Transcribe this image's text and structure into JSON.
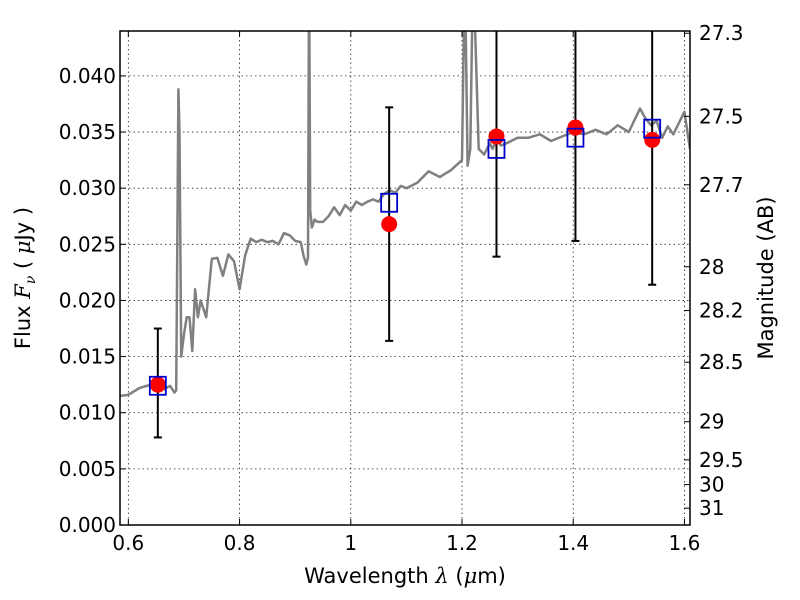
{
  "chart_data": {
    "type": "line",
    "xlabel_prefix": "Wavelength ",
    "xlabel_symbol": "λ",
    "xlabel_unit_open": " (",
    "xlabel_unit_mu": "μ",
    "xlabel_unit_close": "m)",
    "ylabel_prefix": "Flux ",
    "ylabel_symbol": "F",
    "ylabel_subscript": "ν",
    "ylabel_unit_open": " ( ",
    "ylabel_unit_mu": "μ",
    "ylabel_unit_close": "Jy )",
    "y2label": "Magnitude (AB)",
    "xlim": [
      0.585,
      1.61
    ],
    "ylim": [
      0.0,
      0.044
    ],
    "grid": true,
    "xticks": [
      0.6,
      0.8,
      1.0,
      1.2,
      1.4,
      1.6
    ],
    "xtick_labels": [
      "0.6",
      "0.8",
      "1",
      "1.2",
      "1.4",
      "1.6"
    ],
    "yticks": [
      0.0,
      0.005,
      0.01,
      0.015,
      0.02,
      0.025,
      0.03,
      0.035,
      0.04
    ],
    "ytick_labels": [
      "0.000",
      "0.005",
      "0.010",
      "0.015",
      "0.020",
      "0.025",
      "0.030",
      "0.035",
      "0.040"
    ],
    "y2ticks": [
      {
        "label": "27.3",
        "flux": 0.0438
      },
      {
        "label": "27.5",
        "flux": 0.0364
      },
      {
        "label": "27.7",
        "flux": 0.0303
      },
      {
        "label": "28",
        "flux": 0.023
      },
      {
        "label": "28.2",
        "flux": 0.0191
      },
      {
        "label": "28.5",
        "flux": 0.0145
      },
      {
        "label": "29",
        "flux": 0.0092
      },
      {
        "label": "29.5",
        "flux": 0.0058
      },
      {
        "label": "30",
        "flux": 0.0036
      },
      {
        "label": "31",
        "flux": 0.0015
      }
    ],
    "series": [
      {
        "kind": "template_spectrum",
        "color": "#808080",
        "x": [
          0.585,
          0.6,
          0.62,
          0.64,
          0.655,
          0.665,
          0.675,
          0.683,
          0.686,
          0.688,
          0.69,
          0.692,
          0.695,
          0.7,
          0.705,
          0.71,
          0.715,
          0.72,
          0.725,
          0.73,
          0.74,
          0.75,
          0.76,
          0.77,
          0.78,
          0.79,
          0.8,
          0.81,
          0.82,
          0.83,
          0.84,
          0.85,
          0.86,
          0.87,
          0.88,
          0.89,
          0.9,
          0.91,
          0.915,
          0.92,
          0.923,
          0.925,
          0.927,
          0.93,
          0.935,
          0.94,
          0.95,
          0.96,
          0.97,
          0.98,
          0.99,
          1.0,
          1.01,
          1.02,
          1.03,
          1.04,
          1.05,
          1.06,
          1.07,
          1.08,
          1.09,
          1.1,
          1.12,
          1.14,
          1.16,
          1.18,
          1.2,
          1.205,
          1.21,
          1.215,
          1.22,
          1.23,
          1.24,
          1.25,
          1.255,
          1.26,
          1.265,
          1.27,
          1.28,
          1.3,
          1.32,
          1.34,
          1.36,
          1.38,
          1.4,
          1.42,
          1.44,
          1.46,
          1.48,
          1.5,
          1.52,
          1.53,
          1.54,
          1.55,
          1.56,
          1.57,
          1.58,
          1.59,
          1.6,
          1.61
        ],
        "y": [
          0.0115,
          0.0116,
          0.0122,
          0.0125,
          0.0128,
          0.0121,
          0.0124,
          0.0118,
          0.012,
          0.025,
          0.0388,
          0.035,
          0.015,
          0.017,
          0.0185,
          0.0185,
          0.0155,
          0.021,
          0.0185,
          0.02,
          0.0185,
          0.0237,
          0.0238,
          0.0222,
          0.0241,
          0.0235,
          0.021,
          0.024,
          0.0255,
          0.0252,
          0.0254,
          0.0252,
          0.0253,
          0.025,
          0.026,
          0.0258,
          0.0253,
          0.0252,
          0.024,
          0.0232,
          0.0238,
          0.05,
          0.028,
          0.0265,
          0.0272,
          0.027,
          0.027,
          0.0275,
          0.0283,
          0.0276,
          0.0285,
          0.028,
          0.0288,
          0.0285,
          0.0288,
          0.029,
          0.0288,
          0.0295,
          0.0298,
          0.0296,
          0.0302,
          0.03,
          0.0305,
          0.0315,
          0.031,
          0.0316,
          0.0325,
          0.05,
          0.032,
          0.0335,
          0.05,
          0.0335,
          0.033,
          0.034,
          0.0335,
          0.0341,
          0.0342,
          0.0338,
          0.034,
          0.0345,
          0.0345,
          0.0348,
          0.0342,
          0.0346,
          0.035,
          0.0348,
          0.0352,
          0.0348,
          0.0356,
          0.035,
          0.0371,
          0.0362,
          0.0356,
          0.036,
          0.0345,
          0.0355,
          0.0348,
          0.0358,
          0.0368,
          0.0335
        ]
      },
      {
        "kind": "model_photometry",
        "color": "#0000cc",
        "x": [
          0.653,
          1.069,
          1.262,
          1.404,
          1.542
        ],
        "y": [
          0.0124,
          0.0287,
          0.0335,
          0.0345,
          0.0353
        ]
      },
      {
        "kind": "observed_photometry",
        "color": "#ff0000",
        "x": [
          0.653,
          1.069,
          1.262,
          1.404,
          1.542
        ],
        "y": [
          0.0125,
          0.0268,
          0.0346,
          0.0354,
          0.0343
        ],
        "yerr_low": [
          0.0078,
          0.0164,
          0.0239,
          0.0253,
          0.0214
        ],
        "yerr_high": [
          0.0175,
          0.0372,
          0.047,
          0.047,
          0.047
        ]
      }
    ]
  }
}
